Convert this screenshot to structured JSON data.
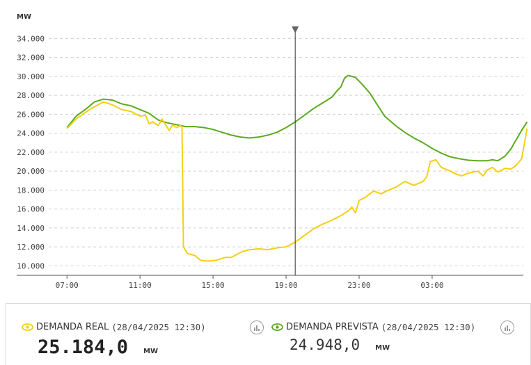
{
  "chart_data": {
    "type": "line",
    "ylabel": "MW",
    "x_ticks": [
      "07:00",
      "11:00",
      "15:00",
      "19:00",
      "23:00",
      "03:00"
    ],
    "y_ticks": [
      "10.000",
      "12.000",
      "14.000",
      "16.000",
      "18.000",
      "20.000",
      "22.000",
      "24.000",
      "26.000",
      "28.000",
      "30.000",
      "32.000",
      "34.000"
    ],
    "ylim": [
      9000,
      35500
    ],
    "x_unit": "hours since 07:00",
    "xlim": [
      -1,
      25.3
    ],
    "grid": true,
    "marker_time": 12.5,
    "series": [
      {
        "name": "DEMANDA PREVISTA",
        "color": "#5aaa1e",
        "points": [
          [
            0,
            24.6
          ],
          [
            0.5,
            25.8
          ],
          [
            1,
            26.5
          ],
          [
            1.5,
            27.3
          ],
          [
            2,
            27.6
          ],
          [
            2.5,
            27.5
          ],
          [
            3,
            27.1
          ],
          [
            3.5,
            26.9
          ],
          [
            4,
            26.5
          ],
          [
            4.5,
            26.1
          ],
          [
            5,
            25.4
          ],
          [
            5.5,
            25.1
          ],
          [
            6,
            24.9
          ],
          [
            6.5,
            24.7
          ],
          [
            7,
            24.7
          ],
          [
            7.5,
            24.6
          ],
          [
            8,
            24.4
          ],
          [
            8.5,
            24.1
          ],
          [
            9,
            23.8
          ],
          [
            9.5,
            23.6
          ],
          [
            10,
            23.5
          ],
          [
            10.5,
            23.6
          ],
          [
            11,
            23.8
          ],
          [
            11.5,
            24.1
          ],
          [
            12,
            24.6
          ],
          [
            12.5,
            25.2
          ],
          [
            13,
            25.9
          ],
          [
            13.5,
            26.6
          ],
          [
            14,
            27.2
          ],
          [
            14.5,
            27.8
          ],
          [
            14.8,
            28.5
          ],
          [
            15,
            28.9
          ],
          [
            15.2,
            29.8
          ],
          [
            15.4,
            30.1
          ],
          [
            15.8,
            29.9
          ],
          [
            16.2,
            29.1
          ],
          [
            16.6,
            28.2
          ],
          [
            17,
            27.0
          ],
          [
            17.4,
            25.8
          ],
          [
            18,
            24.8
          ],
          [
            18.5,
            24.1
          ],
          [
            19,
            23.5
          ],
          [
            19.5,
            23.0
          ],
          [
            20,
            22.4
          ],
          [
            20.5,
            21.9
          ],
          [
            21,
            21.5
          ],
          [
            21.5,
            21.3
          ],
          [
            22,
            21.15
          ],
          [
            22.5,
            21.1
          ],
          [
            23,
            21.1
          ],
          [
            23.3,
            21.2
          ],
          [
            23.6,
            21.1
          ],
          [
            24,
            21.6
          ],
          [
            24.3,
            22.3
          ],
          [
            24.6,
            23.3
          ],
          [
            24.9,
            24.3
          ],
          [
            25.2,
            25.2
          ]
        ]
      },
      {
        "name": "DEMANDA REAL",
        "color": "#f5cf12",
        "points": [
          [
            0,
            24.5
          ],
          [
            0.5,
            25.5
          ],
          [
            1,
            26.2
          ],
          [
            1.5,
            26.8
          ],
          [
            2,
            27.3
          ],
          [
            2.5,
            27.0
          ],
          [
            3,
            26.5
          ],
          [
            3.5,
            26.3
          ],
          [
            4,
            25.8
          ],
          [
            4.3,
            25.9
          ],
          [
            4.5,
            25.0
          ],
          [
            4.7,
            25.2
          ],
          [
            5,
            24.8
          ],
          [
            5.2,
            25.5
          ],
          [
            5.4,
            24.9
          ],
          [
            5.6,
            24.3
          ],
          [
            5.8,
            24.9
          ],
          [
            6,
            24.6
          ],
          [
            6.2,
            24.8
          ],
          [
            6.3,
            24.7
          ],
          [
            6.38,
            12.0
          ],
          [
            6.6,
            11.3
          ],
          [
            7,
            11.1
          ],
          [
            7.3,
            10.6
          ],
          [
            7.7,
            10.5
          ],
          [
            8.2,
            10.6
          ],
          [
            8.7,
            10.9
          ],
          [
            9,
            10.9
          ],
          [
            9.3,
            11.2
          ],
          [
            9.6,
            11.5
          ],
          [
            10,
            11.7
          ],
          [
            10.5,
            11.8
          ],
          [
            11,
            11.7
          ],
          [
            11.5,
            11.9
          ],
          [
            12,
            12.0
          ],
          [
            12.5,
            12.5
          ],
          [
            13,
            13.2
          ],
          [
            13.5,
            13.9
          ],
          [
            14,
            14.4
          ],
          [
            14.5,
            14.8
          ],
          [
            15,
            15.3
          ],
          [
            15.4,
            15.8
          ],
          [
            15.6,
            16.2
          ],
          [
            15.8,
            15.6
          ],
          [
            16,
            16.9
          ],
          [
            16.3,
            17.2
          ],
          [
            16.8,
            17.9
          ],
          [
            17.2,
            17.6
          ],
          [
            17.5,
            17.9
          ],
          [
            18,
            18.3
          ],
          [
            18.5,
            18.9
          ],
          [
            19,
            18.5
          ],
          [
            19.5,
            18.9
          ],
          [
            19.7,
            19.4
          ],
          [
            19.9,
            21.0
          ],
          [
            20.2,
            21.2
          ],
          [
            20.5,
            20.4
          ],
          [
            21,
            20.0
          ],
          [
            21.3,
            19.7
          ],
          [
            21.6,
            19.5
          ],
          [
            22,
            19.8
          ],
          [
            22.5,
            20.0
          ],
          [
            22.8,
            19.5
          ],
          [
            23,
            20.1
          ],
          [
            23.3,
            20.4
          ],
          [
            23.6,
            19.9
          ],
          [
            24,
            20.3
          ],
          [
            24.3,
            20.2
          ],
          [
            24.6,
            20.6
          ],
          [
            24.9,
            21.3
          ],
          [
            25.2,
            24.5
          ]
        ]
      }
    ]
  },
  "panel": {
    "real": {
      "label": "DEMANDA REAL",
      "timestamp": "(28/04/2025 12:30)",
      "value": "25.184,0",
      "unit": "MW",
      "color": "#f5cf12"
    },
    "forecast": {
      "label": "DEMANDA PREVISTA",
      "timestamp": "(28/04/2025 12:30)",
      "value": "24.948,0",
      "unit": "MW",
      "color": "#5aaa1e"
    }
  },
  "icons": {
    "legend": "eye-icon",
    "action": "bar-chart-icon"
  }
}
